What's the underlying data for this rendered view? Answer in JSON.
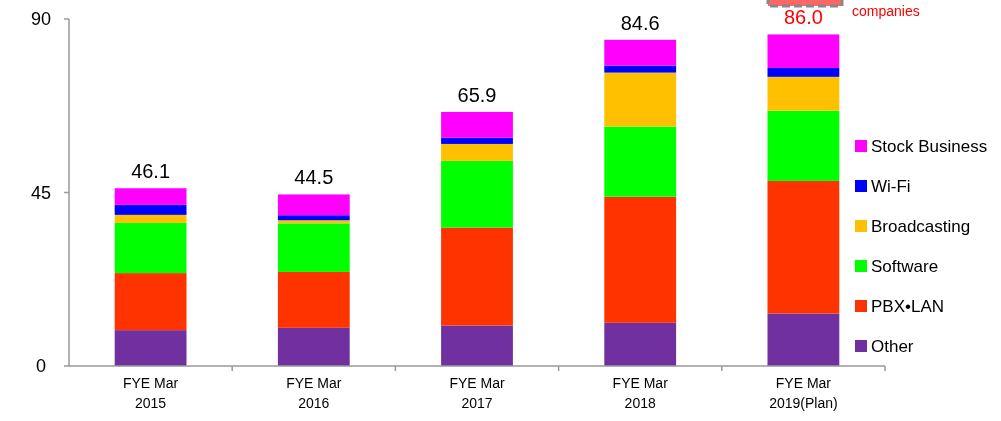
{
  "chart_data": {
    "type": "bar",
    "stacked": true,
    "categories": [
      "FYE Mar\n2015",
      "FYE Mar\n2016",
      "FYE Mar\n2017",
      "FYE Mar\n2018",
      "FYE Mar\n2019(Plan)"
    ],
    "series": [
      {
        "name": "Other",
        "color": "#7030a0",
        "values": [
          9.3,
          9.9,
          10.5,
          11.2,
          13.6
        ]
      },
      {
        "name": "PBX•LAN",
        "color": "#ff3300",
        "values": [
          14.8,
          14.5,
          25.4,
          32.7,
          34.4
        ]
      },
      {
        "name": "Software",
        "color": "#00ff00",
        "values": [
          13.0,
          12.6,
          17.3,
          18.2,
          18.2
        ]
      },
      {
        "name": "Broadcasting",
        "color": "#ffc000",
        "values": [
          2.1,
          0.8,
          4.4,
          14.0,
          8.8
        ]
      },
      {
        "name": "Wi-Fi",
        "color": "#0000ff",
        "values": [
          2.6,
          1.3,
          1.6,
          1.8,
          2.3
        ]
      },
      {
        "name": "Stock Business",
        "color": "#ff00ff",
        "values": [
          4.3,
          5.4,
          6.7,
          6.7,
          8.7
        ]
      }
    ],
    "totals": [
      "46.1",
      "44.5",
      "65.9",
      "84.6",
      "86.0"
    ],
    "ylim": [
      0,
      90
    ],
    "yticks": [
      0,
      45,
      90
    ],
    "grid": false,
    "legend": "right",
    "annotations": [
      "companies"
    ]
  }
}
